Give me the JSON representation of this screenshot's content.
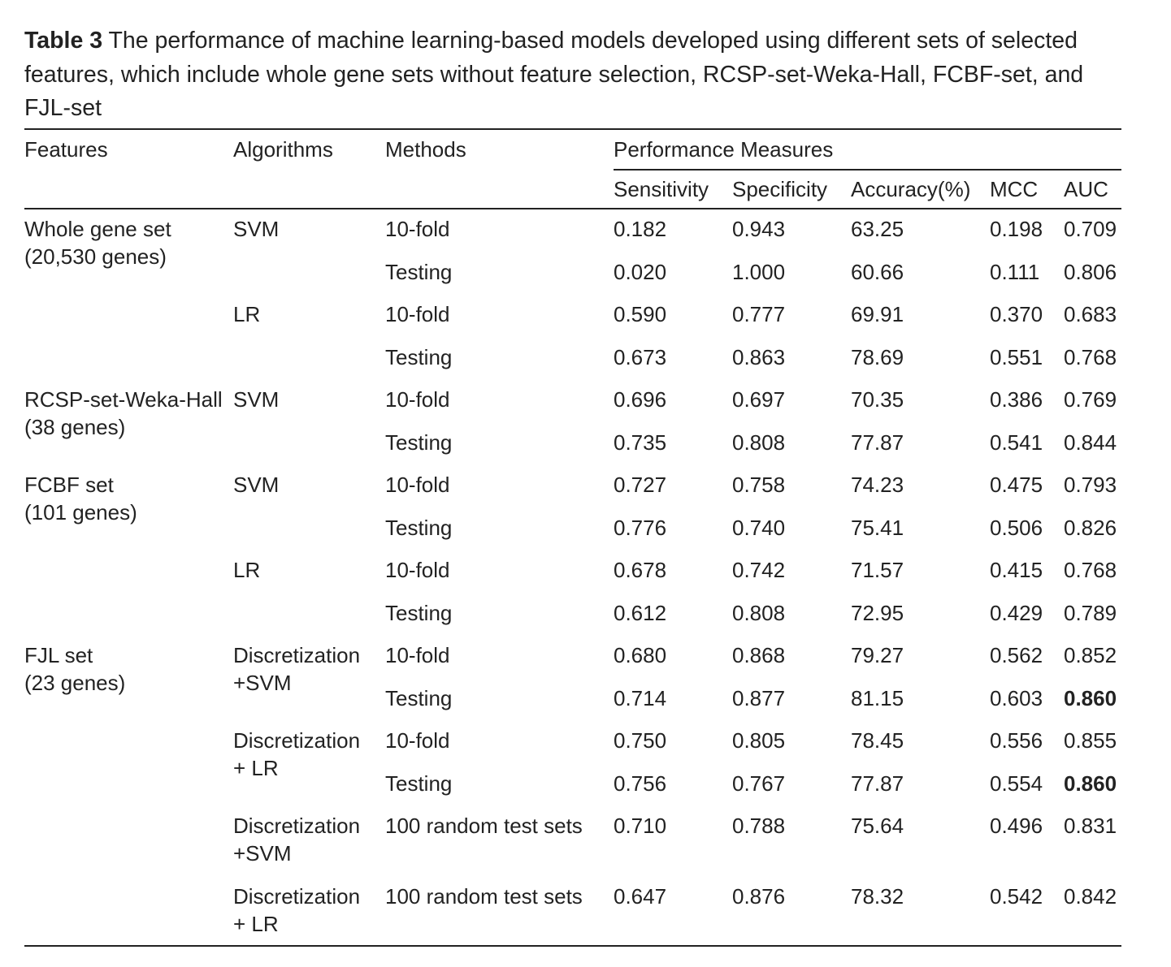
{
  "table": {
    "label": "Table 3",
    "caption": "The performance of machine learning-based models developed using different sets of selected features, which include whole gene sets without feature selection, RCSP-set-Weka-Hall, FCBF-set, and FJL-set",
    "headers": {
      "features": "Features",
      "algorithms": "Algorithms",
      "methods": "Methods",
      "performance": "Performance Measures",
      "sensitivity": "Sensitivity",
      "specificity": "Specificity",
      "accuracy": "Accuracy(%)",
      "mcc": "MCC",
      "auc": "AUC"
    },
    "features": [
      [
        "Whole gene set",
        "(20,530 genes)"
      ],
      [
        "RCSP-set-Weka-Hall",
        "(38 genes)"
      ],
      [
        "FCBF set",
        "(101 genes)"
      ],
      [
        "FJL set",
        "(23 genes)"
      ]
    ],
    "algorithms": [
      [
        "SVM"
      ],
      [
        "LR"
      ],
      [
        "SVM"
      ],
      [
        "SVM"
      ],
      [
        "LR"
      ],
      [
        "Discretization",
        "+SVM"
      ],
      [
        "Discretization",
        "+ LR"
      ],
      [
        "Discretization",
        "+SVM"
      ],
      [
        "Discretization",
        "+ LR"
      ]
    ],
    "rows": [
      {
        "method": "10-fold",
        "sensitivity": "0.182",
        "specificity": "0.943",
        "accuracy": "63.25",
        "mcc": "0.198",
        "auc": "0.709"
      },
      {
        "method": "Testing",
        "sensitivity": "0.020",
        "specificity": "1.000",
        "accuracy": "60.66",
        "mcc": "0.111",
        "auc": "0.806"
      },
      {
        "method": "10-fold",
        "sensitivity": "0.590",
        "specificity": "0.777",
        "accuracy": "69.91",
        "mcc": "0.370",
        "auc": "0.683"
      },
      {
        "method": "Testing",
        "sensitivity": "0.673",
        "specificity": "0.863",
        "accuracy": "78.69",
        "mcc": "0.551",
        "auc": "0.768"
      },
      {
        "method": "10-fold",
        "sensitivity": "0.696",
        "specificity": "0.697",
        "accuracy": "70.35",
        "mcc": "0.386",
        "auc": "0.769"
      },
      {
        "method": "Testing",
        "sensitivity": "0.735",
        "specificity": "0.808",
        "accuracy": "77.87",
        "mcc": "0.541",
        "auc": "0.844"
      },
      {
        "method": "10-fold",
        "sensitivity": "0.727",
        "specificity": "0.758",
        "accuracy": "74.23",
        "mcc": "0.475",
        "auc": "0.793"
      },
      {
        "method": "Testing",
        "sensitivity": "0.776",
        "specificity": "0.740",
        "accuracy": "75.41",
        "mcc": "0.506",
        "auc": "0.826"
      },
      {
        "method": "10-fold",
        "sensitivity": "0.678",
        "specificity": "0.742",
        "accuracy": "71.57",
        "mcc": "0.415",
        "auc": "0.768"
      },
      {
        "method": "Testing",
        "sensitivity": "0.612",
        "specificity": "0.808",
        "accuracy": "72.95",
        "mcc": "0.429",
        "auc": "0.789"
      },
      {
        "method": "10-fold",
        "sensitivity": "0.680",
        "specificity": "0.868",
        "accuracy": "79.27",
        "mcc": "0.562",
        "auc": "0.852"
      },
      {
        "method": "Testing",
        "sensitivity": "0.714",
        "specificity": "0.877",
        "accuracy": "81.15",
        "mcc": "0.603",
        "auc": "0.860",
        "auc_bold": true
      },
      {
        "method": "10-fold",
        "sensitivity": "0.750",
        "specificity": "0.805",
        "accuracy": "78.45",
        "mcc": "0.556",
        "auc": "0.855"
      },
      {
        "method": "Testing",
        "sensitivity": "0.756",
        "specificity": "0.767",
        "accuracy": "77.87",
        "mcc": "0.554",
        "auc": "0.860",
        "auc_bold": true
      },
      {
        "method": "100 random test sets",
        "sensitivity": "0.710",
        "specificity": "0.788",
        "accuracy": "75.64",
        "mcc": "0.496",
        "auc": "0.831"
      },
      {
        "method": "100 random test sets",
        "sensitivity": "0.647",
        "specificity": "0.876",
        "accuracy": "78.32",
        "mcc": "0.542",
        "auc": "0.842"
      }
    ]
  }
}
